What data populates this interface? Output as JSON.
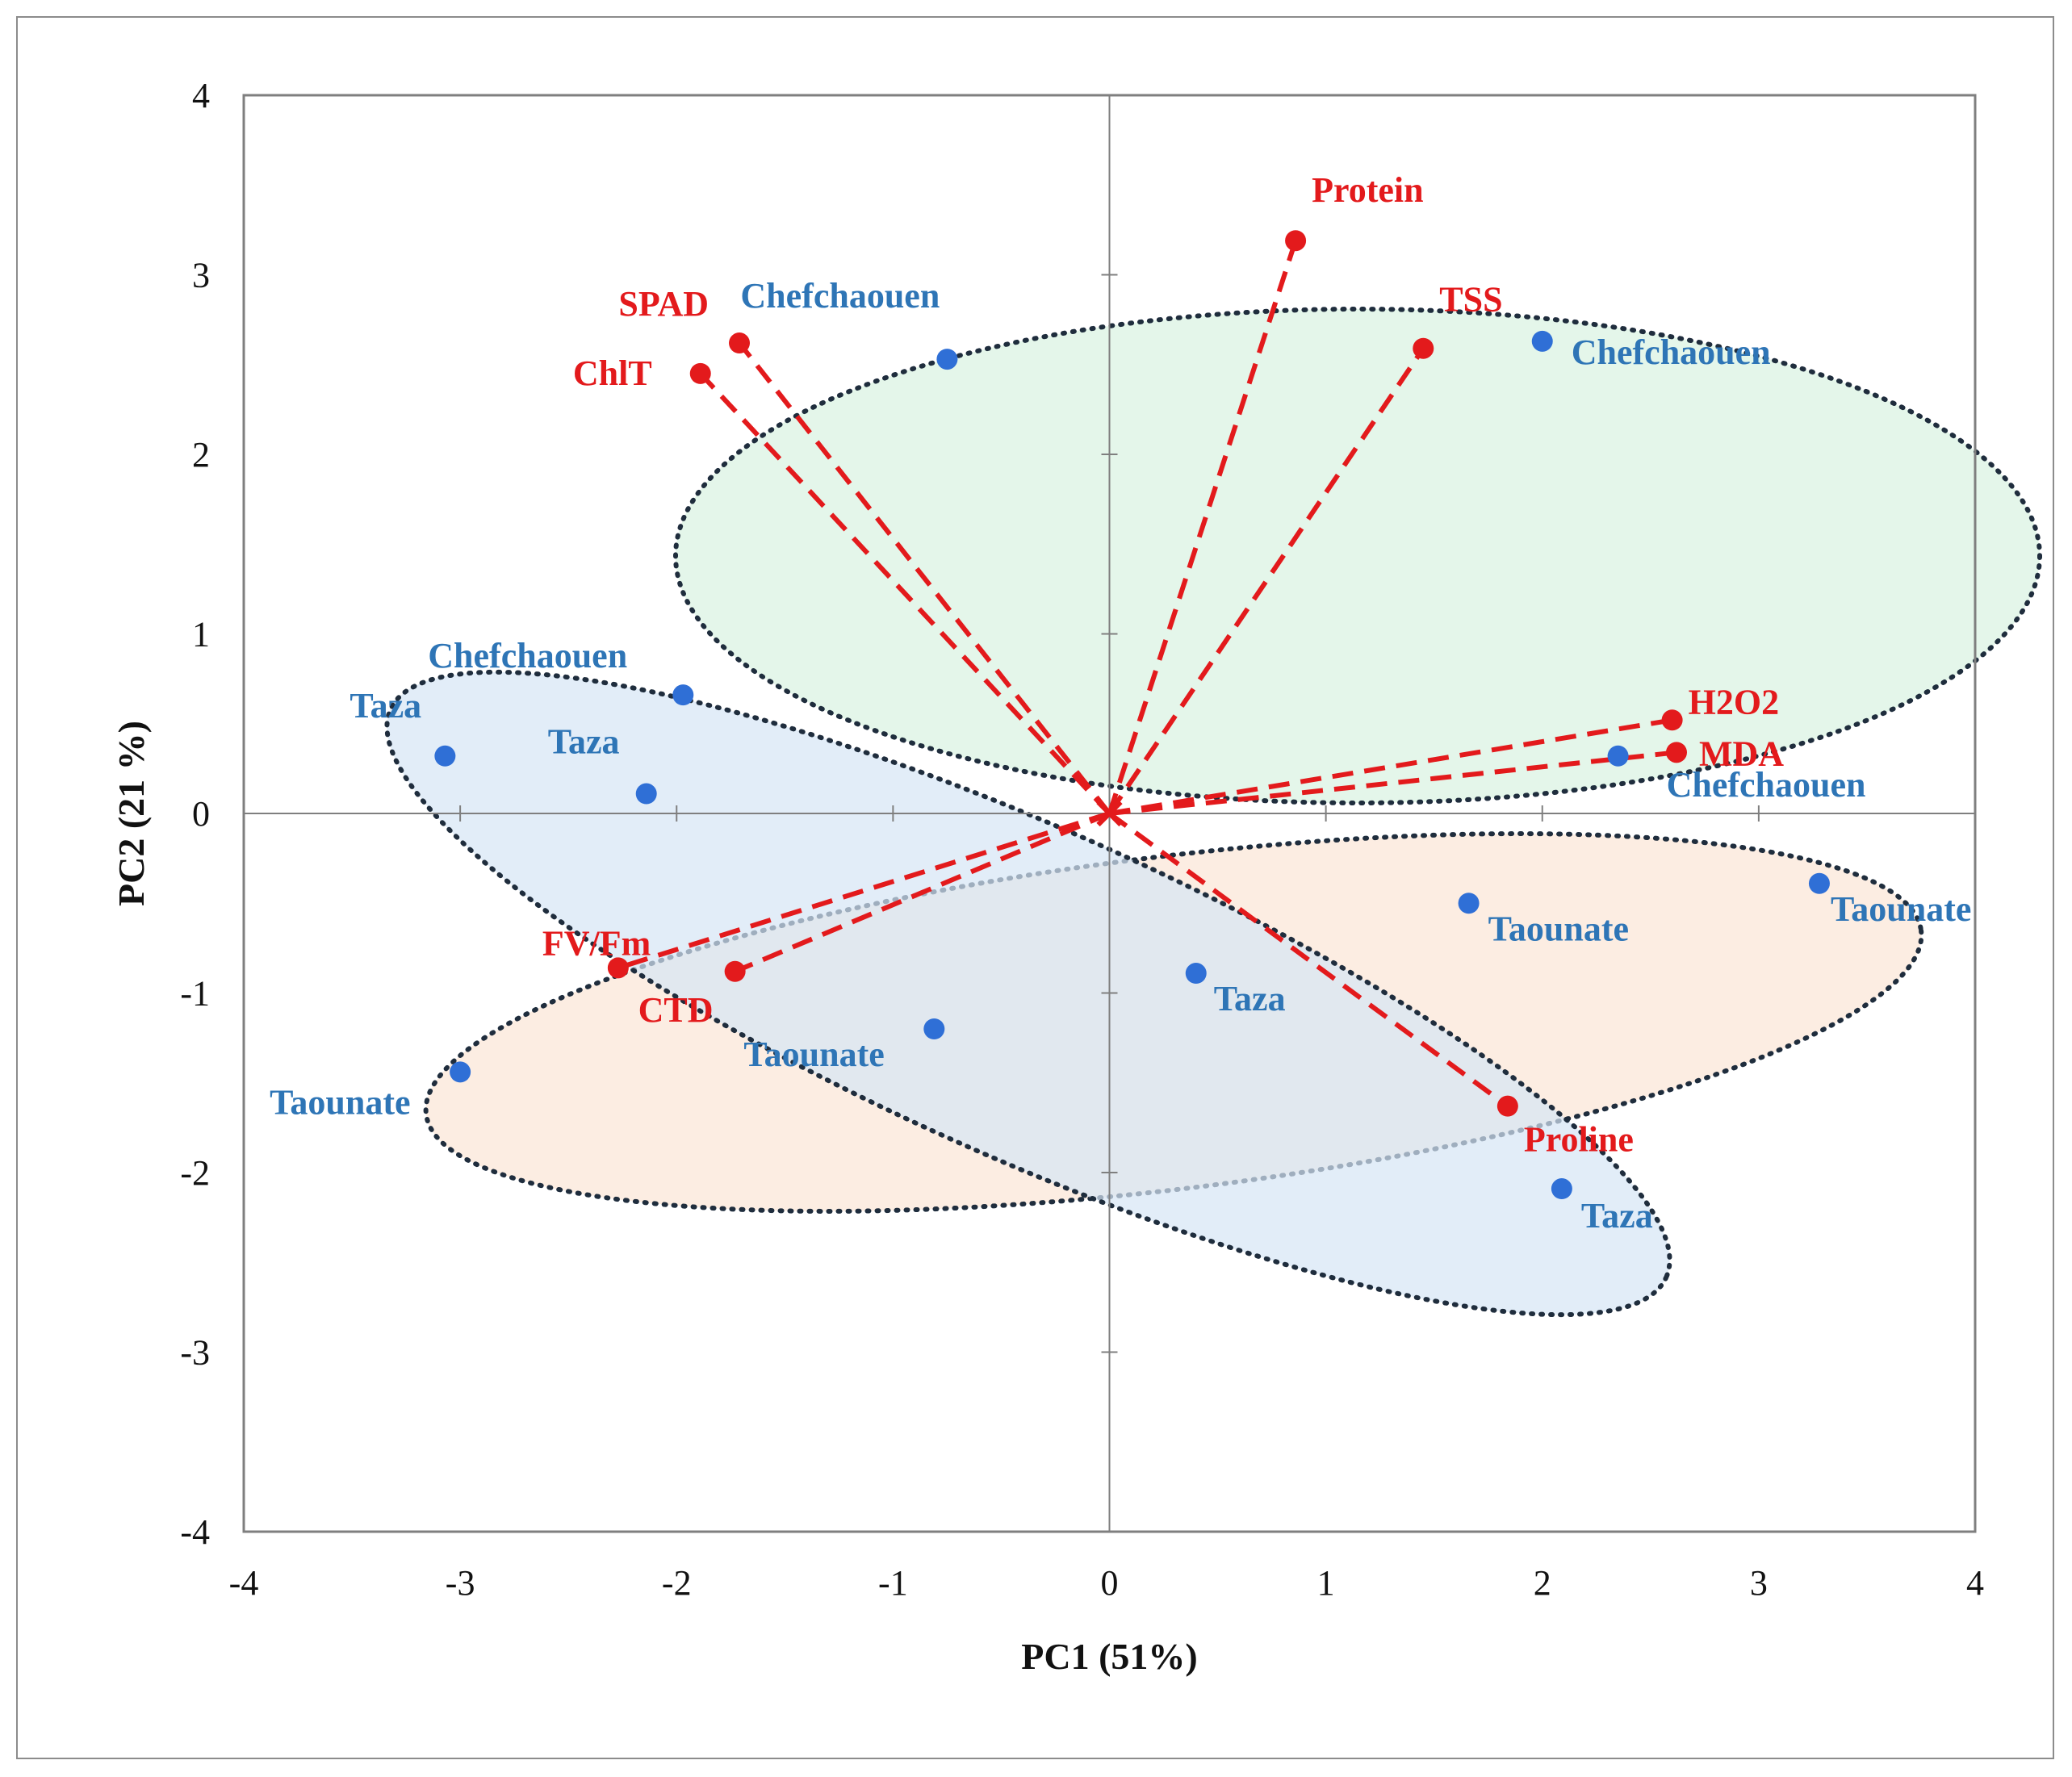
{
  "colors": {
    "variable": "#e31a1c",
    "sample": "#2f6fd6",
    "sample_label": "#2e75b6",
    "group_chefchaouen": "#d9f2e1",
    "group_taza": "#d6e6f5",
    "group_taounate": "#fbe5d6",
    "outline": "#1f2d3d"
  },
  "chart_data": {
    "type": "scatter",
    "subtype": "pca-biplot",
    "title": "",
    "xlabel": "PC1 (51%)",
    "ylabel": "PC2 (21 %)",
    "xlim": [
      -4,
      4
    ],
    "ylim": [
      -4,
      4
    ],
    "xticks": [
      "-4",
      "-3",
      "-2",
      "-1",
      "0",
      "1",
      "2",
      "3",
      "4"
    ],
    "yticks": [
      "-4",
      "-3",
      "-2",
      "-1",
      "0",
      "1",
      "2",
      "3",
      "4"
    ],
    "grid": false,
    "variables": [
      {
        "name": "Protein",
        "x": 0.86,
        "y": 3.19
      },
      {
        "name": "TSS",
        "x": 1.45,
        "y": 2.59
      },
      {
        "name": "SPAD",
        "x": -1.71,
        "y": 2.62
      },
      {
        "name": "ChlT",
        "x": -1.89,
        "y": 2.45
      },
      {
        "name": "H2O2",
        "x": 2.6,
        "y": 0.52
      },
      {
        "name": "MDA",
        "x": 2.62,
        "y": 0.34
      },
      {
        "name": "FV/Fm",
        "x": -2.27,
        "y": -0.86
      },
      {
        "name": "CTD",
        "x": -1.73,
        "y": -0.88
      },
      {
        "name": "Proline",
        "x": 1.84,
        "y": -1.63
      }
    ],
    "samples": [
      {
        "name": "Chefchaouen",
        "x": -0.75,
        "y": 2.53
      },
      {
        "name": "Chefchaouen",
        "x": 2.0,
        "y": 2.63
      },
      {
        "name": "Chefchaouen",
        "x": -1.97,
        "y": 0.66
      },
      {
        "name": "Chefchaouen",
        "x": 2.35,
        "y": 0.32
      },
      {
        "name": "Taza",
        "x": -3.07,
        "y": 0.32
      },
      {
        "name": "Taza",
        "x": -2.14,
        "y": 0.11
      },
      {
        "name": "Taza",
        "x": 0.4,
        "y": -0.89
      },
      {
        "name": "Taza",
        "x": 2.09,
        "y": -2.09
      },
      {
        "name": "Taounate",
        "x": 1.66,
        "y": -0.5
      },
      {
        "name": "Taounate",
        "x": 3.28,
        "y": -0.39
      },
      {
        "name": "Taounate",
        "x": -0.81,
        "y": -1.2
      },
      {
        "name": "Taounate",
        "x": -3.0,
        "y": -1.44
      }
    ],
    "groups": [
      "Chefchaouen",
      "Taza",
      "Taounate"
    ]
  }
}
